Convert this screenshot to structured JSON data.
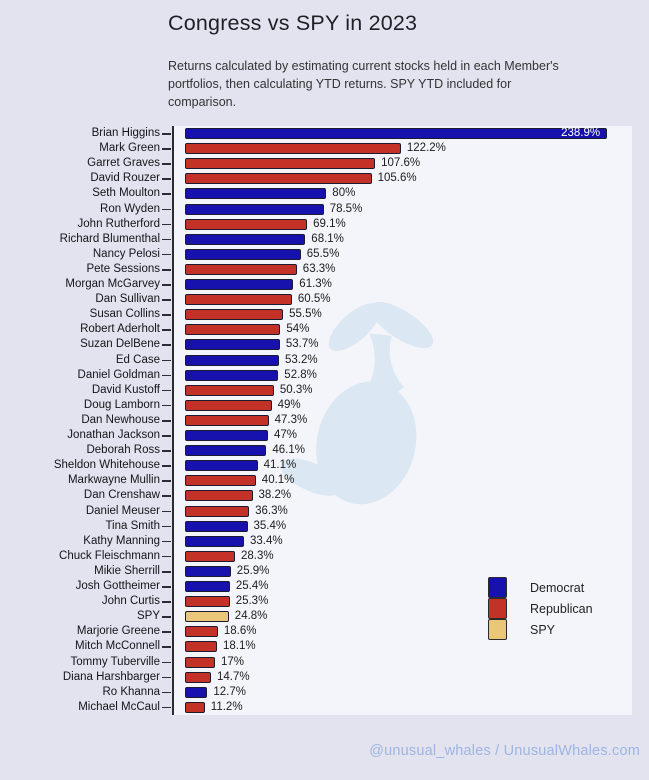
{
  "header": {
    "title": "Congress vs SPY in 2023",
    "subtitle": "Returns calculated by estimating current stocks held in each Member's\nportfolios, then calculating YTD returns. SPY YTD included for\ncomparison."
  },
  "footer": {
    "credit": "@unusual_whales / UnusualWhales.com"
  },
  "colors": {
    "democrat": "#1712ad",
    "republican": "#c33127",
    "spy": "#e9c678",
    "bar_border": "#1b1b2f",
    "page_background": "#e3e3f0",
    "plot_background": "#f4f5fa",
    "watermark": "#dbe7f2",
    "footer_text": "#9db5e0"
  },
  "legend": {
    "position": "lower-right",
    "items": [
      {
        "label": "Democrat",
        "party": "D"
      },
      {
        "label": "Republican",
        "party": "R"
      },
      {
        "label": "SPY",
        "party": "SPY"
      }
    ]
  },
  "chart_data": {
    "type": "bar",
    "orientation": "horizontal",
    "title": "Congress vs SPY in 2023",
    "xlabel": "",
    "ylabel": "",
    "xlim": [
      0,
      253
    ],
    "grid": false,
    "value_suffix": "%",
    "categories": [
      "Brian Higgins",
      "Mark Green",
      "Garret Graves",
      "David Rouzer",
      "Seth Moulton",
      "Ron Wyden",
      "John Rutherford",
      "Richard Blumenthal",
      "Nancy Pelosi",
      "Pete Sessions",
      "Morgan McGarvey",
      "Dan Sullivan",
      "Susan Collins",
      "Robert Aderholt",
      "Suzan DelBene",
      "Ed Case",
      "Daniel Goldman",
      "David Kustoff",
      "Doug Lamborn",
      "Dan Newhouse",
      "Jonathan Jackson",
      "Deborah Ross",
      "Sheldon Whitehouse",
      "Markwayne Mullin",
      "Dan Crenshaw",
      "Daniel Meuser",
      "Tina Smith",
      "Kathy Manning",
      "Chuck Fleischmann",
      "Mikie Sherrill",
      "Josh Gottheimer",
      "John Curtis",
      "SPY",
      "Marjorie Greene",
      "Mitch McConnell",
      "Tommy Tuberville",
      "Diana Harshbarger",
      "Ro Khanna",
      "Michael McCaul"
    ],
    "values": [
      238.9,
      122.2,
      107.6,
      105.6,
      80,
      78.5,
      69.1,
      68.1,
      65.5,
      63.3,
      61.3,
      60.5,
      55.5,
      54,
      53.7,
      53.2,
      52.8,
      50.3,
      49,
      47.3,
      47,
      46.1,
      41.1,
      40.1,
      38.2,
      36.3,
      35.4,
      33.4,
      28.3,
      25.9,
      25.4,
      25.3,
      24.8,
      18.6,
      18.1,
      17,
      14.7,
      12.7,
      11.2
    ],
    "value_labels": [
      "238.9%",
      "122.2%",
      "107.6%",
      "105.6%",
      "80%",
      "78.5%",
      "69.1%",
      "68.1%",
      "65.5%",
      "63.3%",
      "61.3%",
      "60.5%",
      "55.5%",
      "54%",
      "53.7%",
      "53.2%",
      "52.8%",
      "50.3%",
      "49%",
      "47.3%",
      "47%",
      "46.1%",
      "41.1%",
      "40.1%",
      "38.2%",
      "36.3%",
      "35.4%",
      "33.4%",
      "28.3%",
      "25.9%",
      "25.4%",
      "25.3%",
      "24.8%",
      "18.6%",
      "18.1%",
      "17%",
      "14.7%",
      "12.7%",
      "11.2%"
    ],
    "parties": [
      "D",
      "R",
      "R",
      "R",
      "D",
      "D",
      "R",
      "D",
      "D",
      "R",
      "D",
      "R",
      "R",
      "R",
      "D",
      "D",
      "D",
      "R",
      "R",
      "R",
      "D",
      "D",
      "D",
      "R",
      "R",
      "R",
      "D",
      "D",
      "R",
      "D",
      "D",
      "R",
      "SPY",
      "R",
      "R",
      "R",
      "R",
      "D",
      "R"
    ]
  }
}
